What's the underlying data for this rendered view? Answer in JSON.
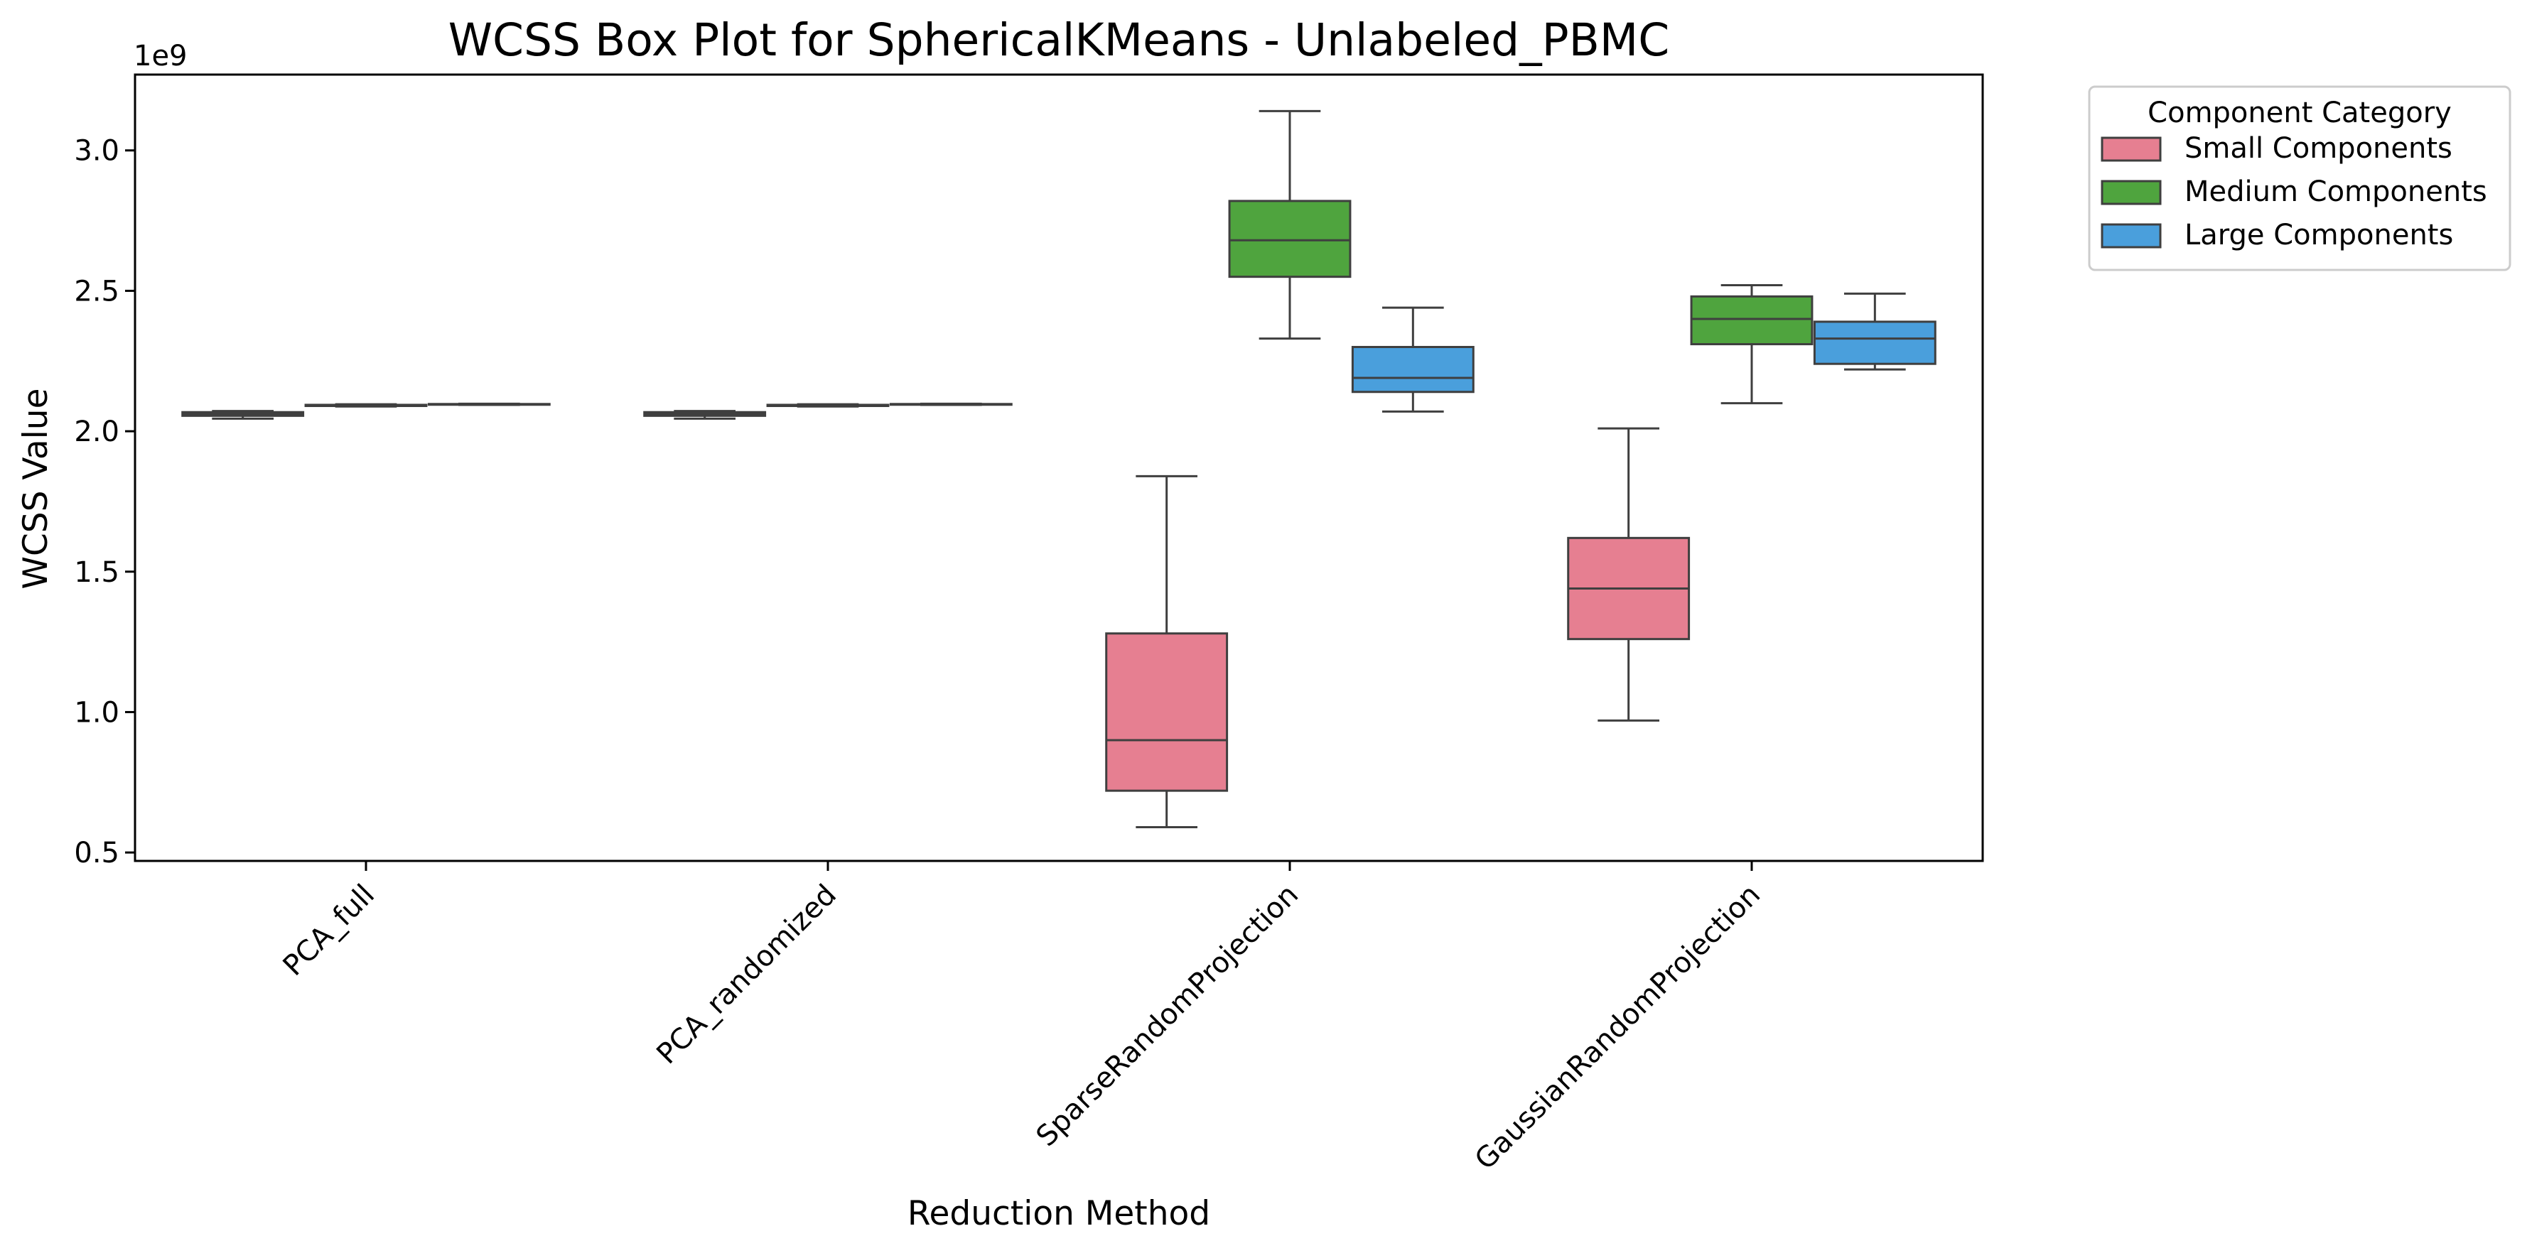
{
  "chart_data": {
    "type": "box",
    "title": "WCSS Box Plot for SphericalKMeans - Unlabeled_PBMC",
    "xlabel": "Reduction Method",
    "ylabel": "WCSS Value",
    "y_offset_text": "1e9",
    "ylim": [
      0.47,
      3.27
    ],
    "yticks": [
      0.5,
      1.0,
      1.5,
      2.0,
      2.5,
      3.0
    ],
    "ytick_labels": [
      "0.5",
      "1.0",
      "1.5",
      "2.0",
      "2.5",
      "3.0"
    ],
    "y_scale_note": "values in units of 1e9",
    "categories": [
      "PCA_full",
      "PCA_randomized",
      "SparseRandomProjection",
      "GaussianRandomProjection"
    ],
    "legend": {
      "title": "Component Category",
      "placement": "outside-top-right"
    },
    "grid": false,
    "series": [
      {
        "name": "Small Components",
        "color": "#e67f91",
        "boxes": [
          {
            "whisker_low": 2.045,
            "q1": 2.055,
            "median": 2.062,
            "q3": 2.068,
            "whisker_high": 2.072
          },
          {
            "whisker_low": 2.045,
            "q1": 2.055,
            "median": 2.062,
            "q3": 2.068,
            "whisker_high": 2.072
          },
          {
            "whisker_low": 0.59,
            "q1": 0.72,
            "median": 0.9,
            "q3": 1.28,
            "whisker_high": 1.84
          },
          {
            "whisker_low": 0.97,
            "q1": 1.26,
            "median": 1.44,
            "q3": 1.62,
            "whisker_high": 2.01
          }
        ]
      },
      {
        "name": "Medium Components",
        "color": "#4fa43e",
        "boxes": [
          {
            "whisker_low": 2.088,
            "q1": 2.09,
            "median": 2.092,
            "q3": 2.094,
            "whisker_high": 2.096
          },
          {
            "whisker_low": 2.088,
            "q1": 2.09,
            "median": 2.092,
            "q3": 2.094,
            "whisker_high": 2.096
          },
          {
            "whisker_low": 2.33,
            "q1": 2.55,
            "median": 2.68,
            "q3": 2.82,
            "whisker_high": 3.14
          },
          {
            "whisker_low": 2.1,
            "q1": 2.31,
            "median": 2.4,
            "q3": 2.48,
            "whisker_high": 2.52
          }
        ]
      },
      {
        "name": "Large Components",
        "color": "#4a9fdc",
        "boxes": [
          {
            "whisker_low": 2.094,
            "q1": 2.095,
            "median": 2.096,
            "q3": 2.097,
            "whisker_high": 2.098
          },
          {
            "whisker_low": 2.094,
            "q1": 2.095,
            "median": 2.096,
            "q3": 2.097,
            "whisker_high": 2.098
          },
          {
            "whisker_low": 2.07,
            "q1": 2.14,
            "median": 2.19,
            "q3": 2.3,
            "whisker_high": 2.44
          },
          {
            "whisker_low": 2.22,
            "q1": 2.24,
            "median": 2.33,
            "q3": 2.39,
            "whisker_high": 2.49
          }
        ]
      }
    ]
  }
}
